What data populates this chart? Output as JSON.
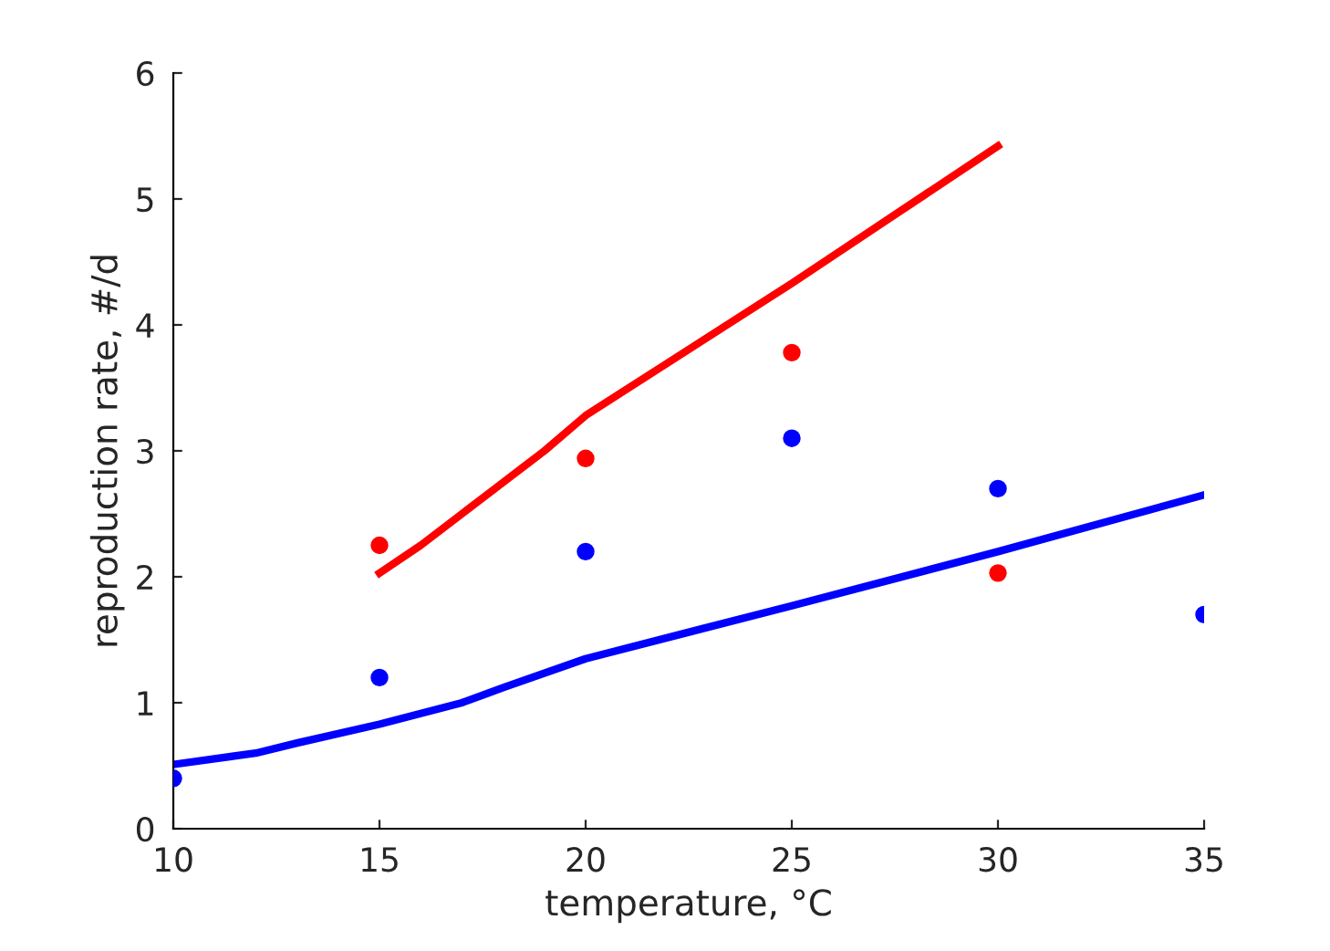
{
  "chart_data": {
    "type": "line",
    "xlabel": "temperature, °C",
    "ylabel": "reproduction rate, #/d",
    "xlim": [
      10,
      35
    ],
    "xticks": [
      10,
      15,
      20,
      25,
      30,
      35
    ],
    "ylim": [
      0,
      6
    ],
    "yticks": [
      0,
      1,
      2,
      3,
      4,
      5,
      6
    ],
    "grid": false,
    "series": [
      {
        "color": "#ff0000",
        "x": [
          15,
          16,
          17,
          18,
          19,
          20,
          25,
          30
        ],
        "values": [
          2.03,
          2.25,
          2.5,
          2.75,
          3.0,
          3.28,
          4.33,
          5.42
        ]
      },
      {
        "color": "#0000ff",
        "x": [
          10,
          12,
          13,
          15,
          17,
          18,
          20,
          25,
          30,
          35
        ],
        "values": [
          0.51,
          0.6,
          0.68,
          0.83,
          1.0,
          1.12,
          1.35,
          1.77,
          2.2,
          2.65
        ]
      },
      {
        "type": "scatter",
        "color": "#ff0000",
        "marker": "circle",
        "x": [
          15,
          20,
          25,
          30
        ],
        "values": [
          2.25,
          2.94,
          3.78,
          2.03
        ]
      },
      {
        "type": "scatter",
        "color": "#0000ff",
        "marker": "circle",
        "x": [
          10,
          15,
          20,
          25,
          30,
          35
        ],
        "values": [
          0.4,
          1.2,
          2.2,
          3.1,
          2.7,
          1.7
        ]
      }
    ]
  }
}
